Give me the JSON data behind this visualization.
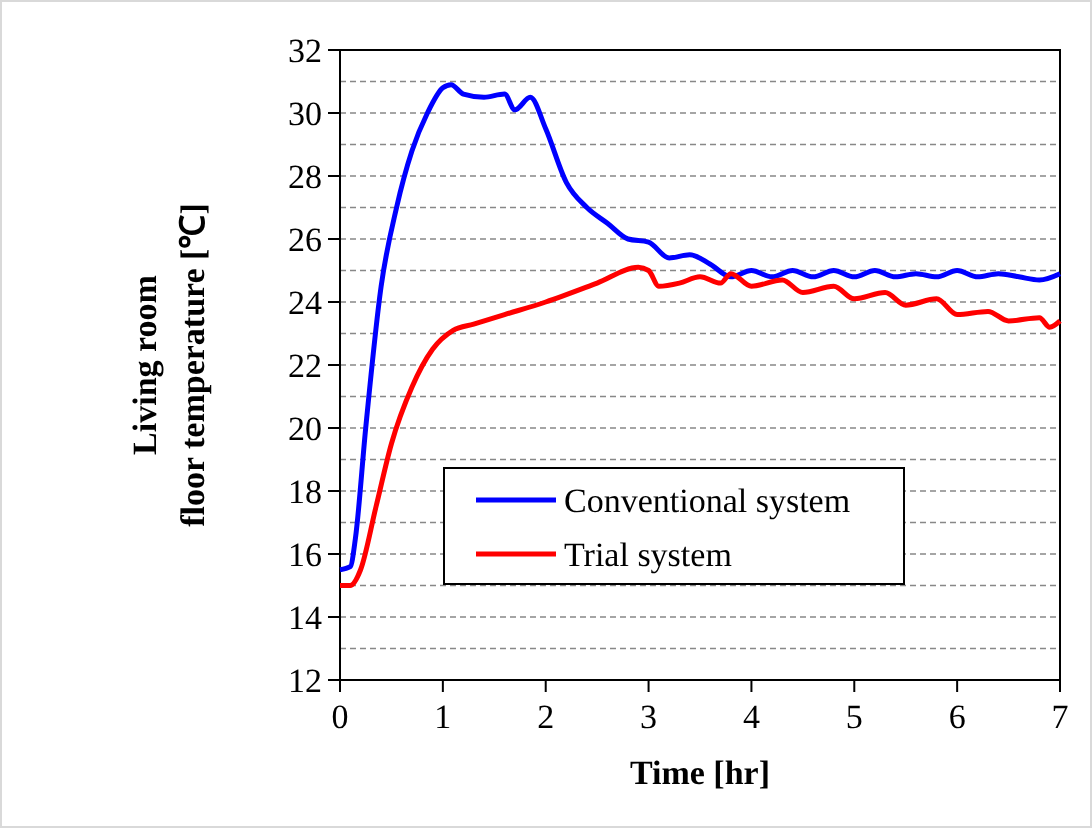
{
  "chart_data": {
    "type": "line",
    "xlabel": "Time [hr]",
    "ylabel": "Living room\nfloor temperature [℃]",
    "xlim": [
      0,
      7
    ],
    "xticks": [
      0,
      1,
      2,
      3,
      4,
      5,
      6,
      7
    ],
    "ylim": [
      12,
      32
    ],
    "yticks": [
      12,
      14,
      16,
      18,
      20,
      22,
      24,
      26,
      28,
      30,
      32
    ],
    "grid": "y",
    "legend": "bottom",
    "line_style": "solid",
    "series": [
      {
        "name": "Conventional system",
        "color": "#0000ff",
        "x": [
          0,
          0.1,
          0.15,
          0.25,
          0.4,
          0.55,
          0.7,
          0.85,
          1.0,
          1.08,
          1.2,
          1.4,
          1.6,
          1.7,
          1.85,
          2.0,
          2.2,
          2.4,
          2.6,
          2.8,
          3.0,
          3.2,
          3.4,
          3.6,
          3.8,
          4.0,
          4.2,
          4.4,
          4.6,
          4.8,
          5.0,
          5.2,
          5.4,
          5.6,
          5.8,
          6.0,
          6.2,
          6.4,
          6.6,
          6.8,
          7.0
        ],
        "values": [
          15.5,
          15.6,
          16.5,
          20,
          24.5,
          27,
          28.8,
          30,
          30.8,
          30.9,
          30.6,
          30.5,
          30.6,
          30.1,
          30.5,
          29.5,
          27.8,
          27,
          26.5,
          26,
          25.9,
          25.4,
          25.5,
          25.2,
          24.8,
          25,
          24.8,
          25,
          24.8,
          25,
          24.8,
          25,
          24.8,
          24.9,
          24.8,
          25,
          24.8,
          24.9,
          24.8,
          24.7,
          24.9
        ]
      },
      {
        "name": "Trial system",
        "color": "#ff0000",
        "x": [
          0,
          0.1,
          0.2,
          0.35,
          0.5,
          0.7,
          0.9,
          1.1,
          1.3,
          1.6,
          2.0,
          2.5,
          2.9,
          3.0,
          3.1,
          3.3,
          3.5,
          3.7,
          3.8,
          4.0,
          4.3,
          4.5,
          4.8,
          5.0,
          5.3,
          5.5,
          5.8,
          6.0,
          6.3,
          6.5,
          6.8,
          6.9,
          7.0
        ],
        "values": [
          15,
          15,
          15.5,
          17.5,
          19.5,
          21.3,
          22.5,
          23.1,
          23.3,
          23.6,
          24,
          24.6,
          25.1,
          25,
          24.5,
          24.6,
          24.8,
          24.6,
          24.9,
          24.5,
          24.7,
          24.3,
          24.5,
          24.1,
          24.3,
          23.9,
          24.1,
          23.6,
          23.7,
          23.4,
          23.5,
          23.2,
          23.4
        ]
      }
    ]
  }
}
